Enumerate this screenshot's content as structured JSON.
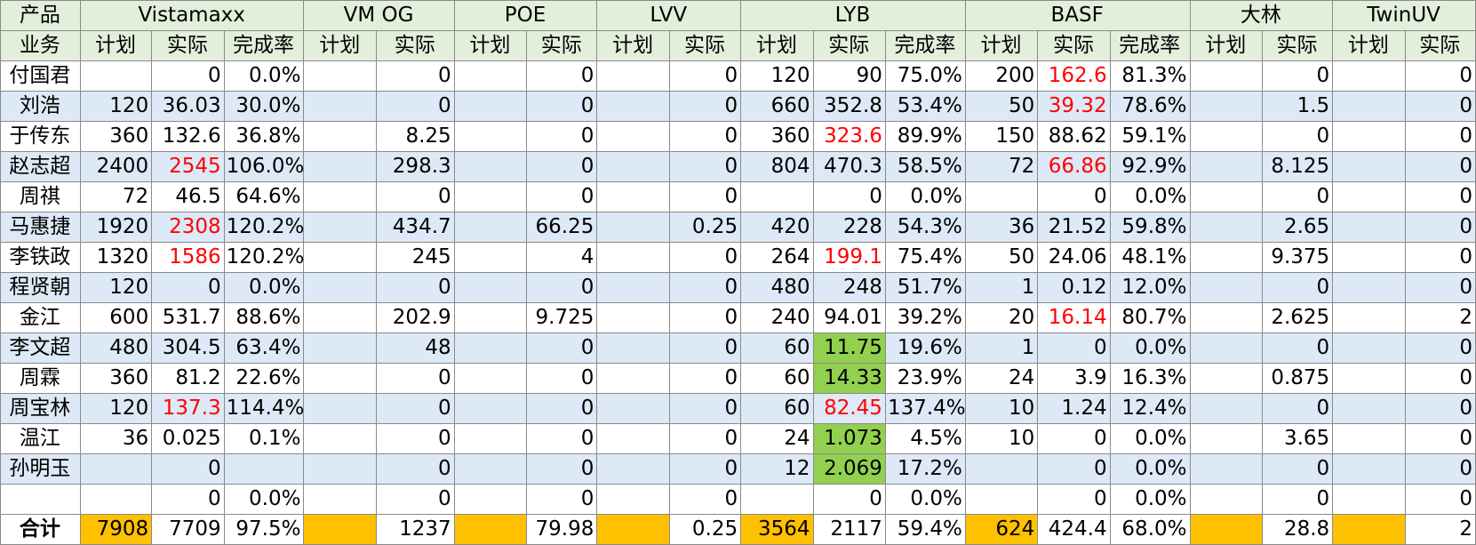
{
  "header": {
    "row1_label": "产品",
    "row2_label": "业务",
    "products": [
      {
        "name": "Vistamaxx",
        "cols": [
          "计划",
          "实际",
          "完成率"
        ]
      },
      {
        "name": "VM OG",
        "cols": [
          "计划",
          "实际"
        ]
      },
      {
        "name": "POE",
        "cols": [
          "计划",
          "实际"
        ]
      },
      {
        "name": "LVV",
        "cols": [
          "计划",
          "实际"
        ]
      },
      {
        "name": "LYB",
        "cols": [
          "计划",
          "实际",
          "完成率"
        ]
      },
      {
        "name": "BASF",
        "cols": [
          "计划",
          "实际",
          "完成率"
        ]
      },
      {
        "name": "大林",
        "cols": [
          "计划",
          "实际"
        ]
      },
      {
        "name": "TwinUV",
        "cols": [
          "计划",
          "实际"
        ]
      }
    ]
  },
  "rows": [
    {
      "name": "付国君",
      "vals": [
        "",
        "0",
        "0.0%",
        "",
        "0",
        "",
        "0",
        "",
        "0",
        "120",
        "90",
        "75.0%",
        "200",
        "162.6",
        "81.3%",
        "",
        "0",
        "",
        "0"
      ]
    },
    {
      "name": "刘浩",
      "vals": [
        "120",
        "36.03",
        "30.0%",
        "",
        "0",
        "",
        "0",
        "",
        "0",
        "660",
        "352.8",
        "53.4%",
        "50",
        "39.32",
        "78.6%",
        "",
        "1.5",
        "",
        "0"
      ]
    },
    {
      "name": "于传东",
      "vals": [
        "360",
        "132.6",
        "36.8%",
        "",
        "8.25",
        "",
        "0",
        "",
        "0",
        "360",
        "323.6",
        "89.9%",
        "150",
        "88.62",
        "59.1%",
        "",
        "0",
        "",
        "0"
      ]
    },
    {
      "name": "赵志超",
      "vals": [
        "2400",
        "2545",
        "106.0%",
        "",
        "298.3",
        "",
        "0",
        "",
        "0",
        "804",
        "470.3",
        "58.5%",
        "72",
        "66.86",
        "92.9%",
        "",
        "8.125",
        "",
        "0"
      ]
    },
    {
      "name": "周祺",
      "vals": [
        "72",
        "46.5",
        "64.6%",
        "",
        "0",
        "",
        "0",
        "",
        "0",
        "",
        "0",
        "0.0%",
        "",
        "0",
        "0.0%",
        "",
        "0",
        "",
        "0"
      ]
    },
    {
      "name": "马惠捷",
      "vals": [
        "1920",
        "2308",
        "120.2%",
        "",
        "434.7",
        "",
        "66.25",
        "",
        "0.25",
        "420",
        "228",
        "54.3%",
        "36",
        "21.52",
        "59.8%",
        "",
        "2.65",
        "",
        "0"
      ]
    },
    {
      "name": "李铁政",
      "vals": [
        "1320",
        "1586",
        "120.2%",
        "",
        "245",
        "",
        "4",
        "",
        "0",
        "264",
        "199.1",
        "75.4%",
        "50",
        "24.06",
        "48.1%",
        "",
        "9.375",
        "",
        "0"
      ]
    },
    {
      "name": "程贤朝",
      "vals": [
        "120",
        "0",
        "0.0%",
        "",
        "0",
        "",
        "0",
        "",
        "0",
        "480",
        "248",
        "51.7%",
        "1",
        "0.12",
        "12.0%",
        "",
        "0",
        "",
        "0"
      ]
    },
    {
      "name": "金江",
      "vals": [
        "600",
        "531.7",
        "88.6%",
        "",
        "202.9",
        "",
        "9.725",
        "",
        "0",
        "240",
        "94.01",
        "39.2%",
        "20",
        "16.14",
        "80.7%",
        "",
        "2.625",
        "",
        "2"
      ]
    },
    {
      "name": "李文超",
      "vals": [
        "480",
        "304.5",
        "63.4%",
        "",
        "48",
        "",
        "0",
        "",
        "0",
        "60",
        "11.75",
        "19.6%",
        "1",
        "0",
        "0.0%",
        "",
        "0",
        "",
        "0"
      ]
    },
    {
      "name": "周霖",
      "vals": [
        "360",
        "81.2",
        "22.6%",
        "",
        "0",
        "",
        "0",
        "",
        "0",
        "60",
        "14.33",
        "23.9%",
        "24",
        "3.9",
        "16.3%",
        "",
        "0.875",
        "",
        "0"
      ]
    },
    {
      "name": "周宝林",
      "vals": [
        "120",
        "137.3",
        "114.4%",
        "",
        "0",
        "",
        "0",
        "",
        "0",
        "60",
        "82.45",
        "137.4%",
        "10",
        "1.24",
        "12.4%",
        "",
        "0",
        "",
        "0"
      ]
    },
    {
      "name": "温江",
      "vals": [
        "36",
        "0.025",
        "0.1%",
        "",
        "0",
        "",
        "0",
        "",
        "0",
        "24",
        "1.073",
        "4.5%",
        "10",
        "0",
        "0.0%",
        "",
        "3.65",
        "",
        "0"
      ]
    },
    {
      "name": "孙明玉",
      "vals": [
        "",
        "0",
        "",
        "",
        "0",
        "",
        "0",
        "",
        "0",
        "12",
        "2.069",
        "17.2%",
        "",
        "0",
        "0.0%",
        "",
        "0",
        "",
        "0"
      ]
    },
    {
      "name": "",
      "vals": [
        "",
        "0",
        "0.0%",
        "",
        "0",
        "",
        "0",
        "",
        "0",
        "",
        "0",
        "0.0%",
        "",
        "0",
        "0.0%",
        "",
        "0",
        "",
        "0"
      ]
    }
  ],
  "total": {
    "name": "合计",
    "vals": [
      "7908",
      "7709",
      "97.5%",
      "",
      "1237",
      "",
      "79.98",
      "",
      "0.25",
      "3564",
      "2117",
      "59.4%",
      "624",
      "424.4",
      "68.0%",
      "",
      "28.8",
      "",
      "2"
    ]
  },
  "colors": {
    "header_bg": "#e2efda",
    "band_bg": "#dde9f6",
    "red_text": "#ff0000",
    "green_cell": "#92d050",
    "gold_cell": "#ffc000"
  },
  "highlights": {
    "red": [
      [
        0,
        13
      ],
      [
        1,
        13
      ],
      [
        2,
        10
      ],
      [
        3,
        1
      ],
      [
        3,
        13
      ],
      [
        5,
        1
      ],
      [
        6,
        1
      ],
      [
        6,
        10
      ],
      [
        8,
        13
      ],
      [
        11,
        1
      ],
      [
        11,
        10
      ]
    ],
    "green": [
      [
        9,
        10
      ],
      [
        10,
        10
      ],
      [
        12,
        10
      ],
      [
        13,
        10
      ]
    ],
    "gold_total_cols": [
      0,
      3,
      5,
      7,
      9,
      12,
      15,
      17
    ]
  }
}
